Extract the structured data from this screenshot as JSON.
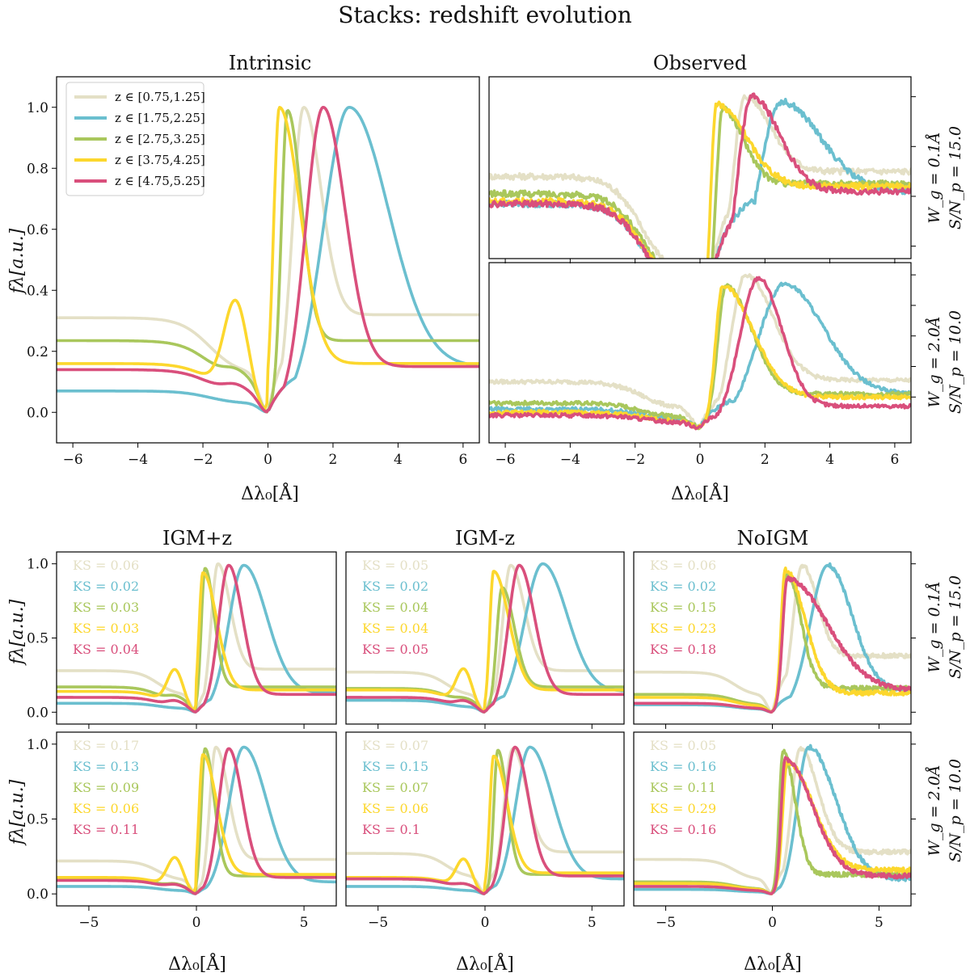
{
  "figure_title": "Stacks: redshift evolution",
  "colors": {
    "z1": "#e4e0c6",
    "z2": "#6bbfcf",
    "z3": "#a9c75c",
    "z4": "#fcd72d",
    "z5": "#d94f7c"
  },
  "labels": {
    "xlabel": "Δλ₀[Å]",
    "ylabel": "fλ[a.u.]",
    "row_labels": [
      {
        "wg": "W_g = 0.1Å",
        "sn": "S/N_p = 15.0"
      },
      {
        "wg": "W_g = 2.0Å",
        "sn": "S/N_p = 10.0"
      }
    ]
  },
  "chart_data": [
    {
      "id": "intrinsic",
      "title": "Intrinsic",
      "type": "line",
      "xlim": [
        -6.5,
        6.5
      ],
      "ylim": [
        -0.1,
        1.1
      ],
      "xticks": [
        "−6",
        "−4",
        "−2",
        "0",
        "2",
        "4",
        "6"
      ],
      "yticks": [
        "0.0",
        "0.2",
        "0.4",
        "0.6",
        "0.8",
        "1.0"
      ],
      "legend": [
        "z ∈ [0.75,1.25]",
        "z ∈ [1.75,2.25]",
        "z ∈ [2.75,3.25]",
        "z ∈ [3.75,4.25]",
        "z ∈ [4.75,5.25]"
      ],
      "series": [
        {
          "name": "z ∈ [0.75,1.25]",
          "baseline_left": 0.31,
          "bump": 0.0,
          "peak_x": 1.1,
          "peak_y": 1.0,
          "width_right": 0.75,
          "baseline_right": 0.32
        },
        {
          "name": "z ∈ [1.75,2.25]",
          "baseline_left": 0.07,
          "bump": 0.0,
          "peak_x": 2.5,
          "peak_y": 1.0,
          "width_right": 1.7,
          "baseline_right": 0.15
        },
        {
          "name": "z ∈ [2.75,3.25]",
          "baseline_left": 0.235,
          "bump": 0.03,
          "peak_x": 0.6,
          "peak_y": 0.99,
          "width_right": 0.6,
          "baseline_right": 0.235
        },
        {
          "name": "z ∈ [3.75,4.25]",
          "baseline_left": 0.16,
          "bump": 0.29,
          "peak_x": 0.35,
          "peak_y": 1.0,
          "width_right": 0.9,
          "baseline_right": 0.16
        },
        {
          "name": "z ∈ [4.75,5.25]",
          "baseline_left": 0.14,
          "bump": 0.025,
          "peak_x": 1.7,
          "peak_y": 1.0,
          "width_right": 0.95,
          "baseline_right": 0.15
        }
      ]
    },
    {
      "id": "observed_row1",
      "title": "Observed",
      "type": "line",
      "xlim": [
        -6.5,
        6.5
      ],
      "xticks": [
        "−6",
        "−4",
        "−2",
        "0",
        "2",
        "4",
        "6"
      ],
      "series": [
        {
          "name": "z ∈ [0.75,1.25]",
          "baseline_left": 0.68,
          "peak_x": 1.4,
          "peak_y": 1.0,
          "width_right": 1.1,
          "baseline_right": 0.7
        },
        {
          "name": "z ∈ [1.75,2.25]",
          "baseline_left": 0.57,
          "peak_x": 2.5,
          "peak_y": 0.98,
          "width_right": 1.7,
          "baseline_right": 0.62
        },
        {
          "name": "z ∈ [2.75,3.25]",
          "baseline_left": 0.61,
          "peak_x": 0.7,
          "peak_y": 0.95,
          "width_right": 0.9,
          "baseline_right": 0.65
        },
        {
          "name": "z ∈ [3.75,4.25]",
          "baseline_left": 0.58,
          "peak_x": 0.5,
          "peak_y": 0.97,
          "width_right": 1.3,
          "baseline_right": 0.64
        },
        {
          "name": "z ∈ [4.75,5.25]",
          "baseline_left": 0.57,
          "peak_x": 1.6,
          "peak_y": 1.0,
          "width_right": 1.2,
          "baseline_right": 0.62
        }
      ]
    },
    {
      "id": "observed_row2",
      "title": "",
      "type": "line",
      "xlim": [
        -6.5,
        6.5
      ],
      "series": [
        {
          "name": "z ∈ [0.75,1.25]",
          "baseline_left": 0.3,
          "peak_x": 1.4,
          "peak_y": 1.0,
          "width_right": 1.2,
          "baseline_right": 0.31
        },
        {
          "name": "z ∈ [1.75,2.25]",
          "baseline_left": 0.12,
          "peak_x": 2.6,
          "peak_y": 0.94,
          "width_right": 1.7,
          "baseline_right": 0.22
        },
        {
          "name": "z ∈ [2.75,3.25]",
          "baseline_left": 0.16,
          "peak_x": 0.8,
          "peak_y": 0.93,
          "width_right": 1.1,
          "baseline_right": 0.22
        },
        {
          "name": "z ∈ [3.75,4.25]",
          "baseline_left": 0.1,
          "peak_x": 0.7,
          "peak_y": 0.93,
          "width_right": 1.3,
          "baseline_right": 0.2
        },
        {
          "name": "z ∈ [4.75,5.25]",
          "baseline_left": 0.08,
          "peak_x": 1.8,
          "peak_y": 0.98,
          "width_right": 1.0,
          "baseline_right": 0.14
        }
      ]
    },
    {
      "id": "igm_plus_z_r1",
      "title": "IGM+z",
      "type": "line",
      "xlim": [
        -6.5,
        6.5
      ],
      "ylim": [
        -0.08,
        1.08
      ],
      "yticks": [
        "0.0",
        "0.5",
        "1.0"
      ],
      "ks": [
        "KS = 0.06",
        "KS = 0.02",
        "KS = 0.03",
        "KS = 0.03",
        "KS = 0.04"
      ],
      "series": [
        {
          "name": "z ∈ [0.75,1.25]",
          "baseline_left": 0.28,
          "bump": 0.0,
          "peak_x": 1.0,
          "peak_y": 1.0,
          "width_right": 0.8,
          "baseline_right": 0.29
        },
        {
          "name": "z ∈ [1.75,2.25]",
          "baseline_left": 0.06,
          "bump": 0.0,
          "peak_x": 2.2,
          "peak_y": 0.99,
          "width_right": 1.5,
          "baseline_right": 0.13
        },
        {
          "name": "z ∈ [2.75,3.25]",
          "baseline_left": 0.17,
          "bump": 0.03,
          "peak_x": 0.4,
          "peak_y": 0.97,
          "width_right": 0.6,
          "baseline_right": 0.17
        },
        {
          "name": "z ∈ [3.75,4.25]",
          "baseline_left": 0.14,
          "bump": 0.22,
          "peak_x": 0.3,
          "peak_y": 0.94,
          "width_right": 0.9,
          "baseline_right": 0.15
        },
        {
          "name": "z ∈ [4.75,5.25]",
          "baseline_left": 0.1,
          "bump": 0.03,
          "peak_x": 1.5,
          "peak_y": 0.99,
          "width_right": 0.9,
          "baseline_right": 0.12
        }
      ]
    },
    {
      "id": "igm_minus_z_r1",
      "title": "IGM-z",
      "type": "line",
      "xlim": [
        -6.5,
        6.5
      ],
      "ks": [
        "KS = 0.05",
        "KS = 0.02",
        "KS = 0.04",
        "KS = 0.04",
        "KS = 0.05"
      ],
      "series": [
        {
          "name": "z ∈ [0.75,1.25]",
          "baseline_left": 0.27,
          "bump": 0.0,
          "peak_x": 1.2,
          "peak_y": 0.99,
          "width_right": 0.9,
          "baseline_right": 0.28
        },
        {
          "name": "z ∈ [1.75,2.25]",
          "baseline_left": 0.08,
          "bump": 0.0,
          "peak_x": 2.7,
          "peak_y": 1.0,
          "width_right": 1.6,
          "baseline_right": 0.14
        },
        {
          "name": "z ∈ [2.75,3.25]",
          "baseline_left": 0.16,
          "bump": 0.02,
          "peak_x": 0.8,
          "peak_y": 0.84,
          "width_right": 0.8,
          "baseline_right": 0.17
        },
        {
          "name": "z ∈ [3.75,4.25]",
          "baseline_left": 0.15,
          "bump": 0.22,
          "peak_x": 0.4,
          "peak_y": 0.95,
          "width_right": 1.0,
          "baseline_right": 0.15
        },
        {
          "name": "z ∈ [4.75,5.25]",
          "baseline_left": 0.1,
          "bump": 0.03,
          "peak_x": 1.6,
          "peak_y": 0.99,
          "width_right": 1.0,
          "baseline_right": 0.12
        }
      ]
    },
    {
      "id": "noigm_r1",
      "title": "NoIGM",
      "type": "line",
      "xlim": [
        -6.5,
        6.5
      ],
      "ks": [
        "KS = 0.06",
        "KS = 0.02",
        "KS = 0.15",
        "KS = 0.23",
        "KS = 0.18"
      ],
      "series": [
        {
          "name": "z ∈ [0.75,1.25]",
          "baseline_left": 0.27,
          "bump": 0.0,
          "peak_x": 1.4,
          "peak_y": 0.99,
          "width_right": 1.0,
          "baseline_right": 0.38
        },
        {
          "name": "z ∈ [1.75,2.25]",
          "baseline_left": 0.05,
          "bump": 0.0,
          "peak_x": 2.6,
          "peak_y": 0.99,
          "width_right": 1.6,
          "baseline_right": 0.14
        },
        {
          "name": "z ∈ [2.75,3.25]",
          "baseline_left": 0.12,
          "bump": 0.0,
          "peak_x": 0.7,
          "peak_y": 0.93,
          "width_right": 0.9,
          "baseline_right": 0.16
        },
        {
          "name": "z ∈ [3.75,4.25]",
          "baseline_left": 0.1,
          "bump": 0.0,
          "peak_x": 0.6,
          "peak_y": 0.96,
          "width_right": 1.3,
          "baseline_right": 0.13
        },
        {
          "name": "z ∈ [4.75,5.25]",
          "baseline_left": 0.06,
          "bump": 0.0,
          "peak_x": 0.7,
          "peak_y": 0.9,
          "width_right": 2.6,
          "baseline_right": 0.15
        }
      ]
    },
    {
      "id": "igm_plus_z_r2",
      "title": "",
      "type": "line",
      "xlim": [
        -6.5,
        6.5
      ],
      "xticks": [
        "−5",
        "0",
        "5"
      ],
      "ks": [
        "KS = 0.17",
        "KS = 0.13",
        "KS = 0.09",
        "KS = 0.06",
        "KS = 0.11"
      ],
      "series": [
        {
          "name": "z ∈ [0.75,1.25]",
          "baseline_left": 0.22,
          "bump": 0.0,
          "peak_x": 0.9,
          "peak_y": 0.98,
          "width_right": 0.8,
          "baseline_right": 0.23
        },
        {
          "name": "z ∈ [1.75,2.25]",
          "baseline_left": 0.05,
          "bump": 0.0,
          "peak_x": 2.2,
          "peak_y": 0.98,
          "width_right": 1.5,
          "baseline_right": 0.08
        },
        {
          "name": "z ∈ [2.75,3.25]",
          "baseline_left": 0.1,
          "bump": 0.02,
          "peak_x": 0.4,
          "peak_y": 0.97,
          "width_right": 0.6,
          "baseline_right": 0.12
        },
        {
          "name": "z ∈ [3.75,4.25]",
          "baseline_left": 0.11,
          "bump": 0.19,
          "peak_x": 0.3,
          "peak_y": 0.93,
          "width_right": 0.9,
          "baseline_right": 0.13
        },
        {
          "name": "z ∈ [4.75,5.25]",
          "baseline_left": 0.09,
          "bump": 0.02,
          "peak_x": 1.5,
          "peak_y": 0.97,
          "width_right": 0.9,
          "baseline_right": 0.11
        }
      ]
    },
    {
      "id": "igm_minus_z_r2",
      "title": "",
      "type": "line",
      "xlim": [
        -6.5,
        6.5
      ],
      "xticks": [
        "−5",
        "0",
        "5"
      ],
      "ks": [
        "KS = 0.07",
        "KS = 0.15",
        "KS = 0.07",
        "KS = 0.06",
        "KS = 0.1"
      ],
      "series": [
        {
          "name": "z ∈ [0.75,1.25]",
          "baseline_left": 0.27,
          "bump": 0.0,
          "peak_x": 1.3,
          "peak_y": 0.97,
          "width_right": 0.9,
          "baseline_right": 0.28
        },
        {
          "name": "z ∈ [1.75,2.25]",
          "baseline_left": 0.05,
          "bump": 0.0,
          "peak_x": 2.1,
          "peak_y": 0.98,
          "width_right": 1.5,
          "baseline_right": 0.1
        },
        {
          "name": "z ∈ [2.75,3.25]",
          "baseline_left": 0.1,
          "bump": 0.02,
          "peak_x": 0.6,
          "peak_y": 0.96,
          "width_right": 0.6,
          "baseline_right": 0.13
        },
        {
          "name": "z ∈ [3.75,4.25]",
          "baseline_left": 0.11,
          "bump": 0.18,
          "peak_x": 0.4,
          "peak_y": 0.92,
          "width_right": 0.9,
          "baseline_right": 0.14
        },
        {
          "name": "z ∈ [4.75,5.25]",
          "baseline_left": 0.1,
          "bump": 0.02,
          "peak_x": 1.4,
          "peak_y": 0.98,
          "width_right": 0.9,
          "baseline_right": 0.12
        }
      ]
    },
    {
      "id": "noigm_r2",
      "title": "",
      "type": "line",
      "xlim": [
        -6.5,
        6.5
      ],
      "xticks": [
        "−5",
        "0",
        "5"
      ],
      "ks": [
        "KS = 0.05",
        "KS = 0.16",
        "KS = 0.11",
        "KS = 0.29",
        "KS = 0.16"
      ],
      "series": [
        {
          "name": "z ∈ [0.75,1.25]",
          "baseline_left": 0.23,
          "bump": 0.0,
          "peak_x": 1.3,
          "peak_y": 0.97,
          "width_right": 1.2,
          "baseline_right": 0.28
        },
        {
          "name": "z ∈ [1.75,2.25]",
          "baseline_left": 0.03,
          "bump": 0.0,
          "peak_x": 1.7,
          "peak_y": 0.98,
          "width_right": 1.8,
          "baseline_right": 0.1
        },
        {
          "name": "z ∈ [2.75,3.25]",
          "baseline_left": 0.08,
          "bump": 0.0,
          "peak_x": 0.5,
          "peak_y": 0.95,
          "width_right": 0.8,
          "baseline_right": 0.13
        },
        {
          "name": "z ∈ [3.75,4.25]",
          "baseline_left": 0.07,
          "bump": 0.0,
          "peak_x": 0.7,
          "peak_y": 0.88,
          "width_right": 1.7,
          "baseline_right": 0.16
        },
        {
          "name": "z ∈ [4.75,5.25]",
          "baseline_left": 0.05,
          "bump": 0.0,
          "peak_x": 0.6,
          "peak_y": 0.9,
          "width_right": 1.8,
          "baseline_right": 0.12
        }
      ]
    }
  ]
}
